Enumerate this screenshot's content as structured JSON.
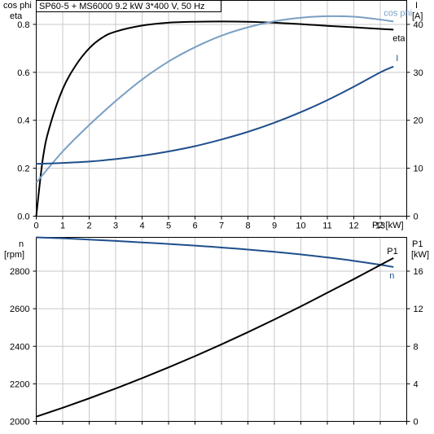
{
  "chart_data": [
    {
      "type": "line",
      "title": "SP60-5 + MS6000   9.2 kW   3*400 V, 50 Hz",
      "xlabel": "P2 [kW]",
      "xlim": [
        0,
        14
      ],
      "x_ticks": [
        "0",
        "1",
        "2",
        "3",
        "4",
        "5",
        "6",
        "7",
        "8",
        "9",
        "10",
        "11",
        "12",
        "13"
      ],
      "left_axis": {
        "label_line1": "cos phi",
        "label_line2": "eta",
        "ylim": [
          0,
          0.9
        ],
        "ticks": [
          "0.0",
          "0.2",
          "0.4",
          "0.6",
          "0.8"
        ]
      },
      "right_axis": {
        "label_line1": "I",
        "label_line2": "[A]",
        "ylim": [
          0,
          45
        ],
        "ticks": [
          "0",
          "10",
          "20",
          "30",
          "40"
        ]
      },
      "grid": true,
      "series": [
        {
          "name": "eta",
          "axis": "left",
          "color": "#000000",
          "x": [
            0,
            0.25,
            0.5,
            1,
            1.5,
            2,
            2.5,
            3,
            4,
            5,
            6,
            7,
            8,
            9,
            10,
            11,
            12,
            13,
            13.5
          ],
          "y": [
            0,
            0.24,
            0.37,
            0.53,
            0.63,
            0.7,
            0.745,
            0.77,
            0.795,
            0.807,
            0.811,
            0.812,
            0.811,
            0.807,
            0.801,
            0.794,
            0.788,
            0.781,
            0.778
          ]
        },
        {
          "name": "cos phi",
          "axis": "left",
          "color": "#7a9fc4",
          "x": [
            0,
            1,
            2,
            3,
            4,
            5,
            6,
            7,
            8,
            9,
            10,
            11,
            12,
            13,
            13.5
          ],
          "y": [
            0.14,
            0.27,
            0.38,
            0.48,
            0.57,
            0.645,
            0.705,
            0.753,
            0.788,
            0.813,
            0.828,
            0.834,
            0.832,
            0.82,
            0.812
          ]
        },
        {
          "name": "I",
          "axis": "right",
          "color": "#1f4e8c",
          "x": [
            0,
            1,
            2,
            3,
            4,
            5,
            6,
            7,
            8,
            9,
            10,
            11,
            12,
            13,
            13.5
          ],
          "y": [
            10.9,
            11.1,
            11.4,
            11.9,
            12.6,
            13.5,
            14.6,
            16.0,
            17.6,
            19.5,
            21.7,
            24.2,
            27.0,
            30.0,
            31.2
          ]
        }
      ]
    },
    {
      "type": "line",
      "xlim": [
        0,
        14
      ],
      "left_axis": {
        "label_line1": "n",
        "label_line2": "[rpm]",
        "ylim": [
          2000,
          2980
        ],
        "ticks": [
          "2000",
          "2200",
          "2400",
          "2600",
          "2800"
        ]
      },
      "right_axis": {
        "label_line1": "P1",
        "label_line2": "[kW]",
        "ylim": [
          0,
          19.6
        ],
        "ticks": [
          "0",
          "4",
          "8",
          "12",
          "16"
        ]
      },
      "grid": true,
      "series": [
        {
          "name": "n",
          "axis": "left",
          "color": "#1f4e8c",
          "x": [
            0,
            1,
            2,
            3,
            4,
            5,
            6,
            7,
            8,
            9,
            10,
            11,
            12,
            13,
            13.5
          ],
          "y": [
            2980,
            2975,
            2968,
            2961,
            2953,
            2945,
            2936,
            2926,
            2915,
            2903,
            2889,
            2873,
            2855,
            2834,
            2822
          ]
        },
        {
          "name": "P1",
          "axis": "right",
          "color": "#000000",
          "x": [
            0,
            1,
            2,
            3,
            4,
            5,
            6,
            7,
            8,
            9,
            10,
            11,
            12,
            13,
            13.5
          ],
          "y": [
            0.5,
            1.45,
            2.45,
            3.5,
            4.6,
            5.75,
            6.95,
            8.2,
            9.5,
            10.85,
            12.25,
            13.7,
            15.15,
            16.65,
            17.4
          ]
        }
      ]
    }
  ]
}
